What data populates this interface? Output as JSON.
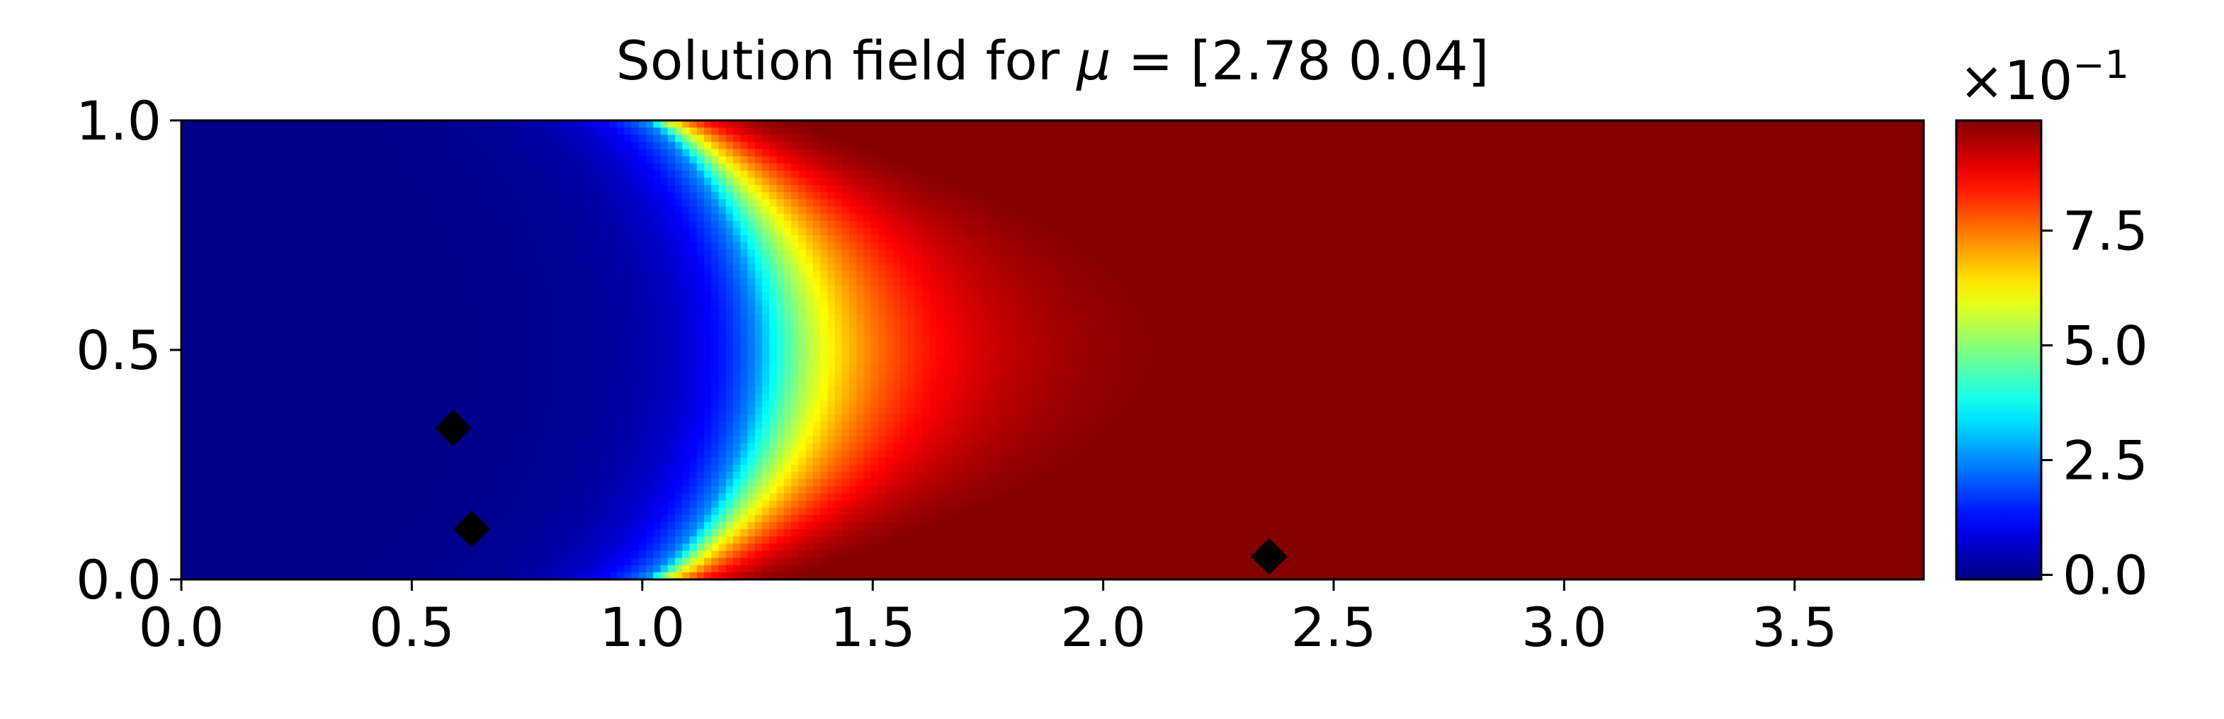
{
  "chart_data": {
    "type": "heatmap",
    "title_prefix": "Solution field for ",
    "title_symbol": "μ",
    "title_suffix": " = [2.78 0.04]",
    "x_range": [
      0,
      3.78
    ],
    "y_range": [
      0,
      1.0
    ],
    "x_ticks": [
      0.0,
      0.5,
      1.0,
      1.5,
      2.0,
      2.5,
      3.0,
      3.5
    ],
    "x_tick_labels": [
      "0.0",
      "0.5",
      "1.0",
      "1.5",
      "2.0",
      "2.5",
      "3.0",
      "3.5"
    ],
    "y_ticks": [
      0.0,
      0.5,
      1.0
    ],
    "y_tick_labels": [
      "0.0",
      "0.5",
      "1.0"
    ],
    "colormap": "jet",
    "colorbar": {
      "range": [
        -0.01,
        0.99
      ],
      "ticks": [
        0.0,
        0.25,
        0.5,
        0.75
      ],
      "tick_labels": [
        "0.0",
        "2.5",
        "5.0",
        "7.5"
      ],
      "multiplier_base": "×10",
      "multiplier_exp": "−1"
    },
    "field_description": {
      "front_x_at_walls": 1.0,
      "front_x_at_centerline": 1.25,
      "max_value_region_x": 3.5
    },
    "markers": {
      "shape": "diamond",
      "color": "#000000",
      "points": [
        {
          "x": 0.59,
          "y": 0.33
        },
        {
          "x": 0.63,
          "y": 0.11
        },
        {
          "x": 2.36,
          "y": 0.05
        }
      ]
    }
  }
}
